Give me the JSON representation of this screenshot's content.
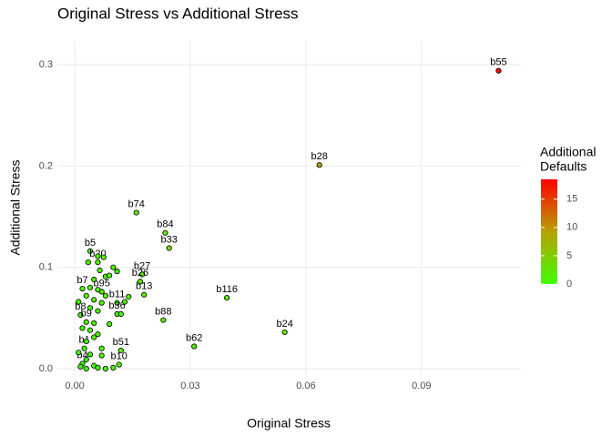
{
  "chart_data": {
    "type": "scatter",
    "title": "Original Stress vs Additional Stress",
    "xlabel": "Original Stress",
    "ylabel": "Additional Stress",
    "xlim": [
      -0.0045,
      0.1158
    ],
    "ylim": [
      -0.0063,
      0.3234
    ],
    "xticks": [
      {
        "value": 0,
        "label": "0.00"
      },
      0.03,
      0.06,
      0.09
    ],
    "yticks": [
      {
        "value": 0,
        "label": "0.0"
      },
      0.1,
      0.2,
      0.3
    ],
    "grid": true,
    "legend_title": [
      "Additional",
      "Defaults"
    ],
    "colorbar": {
      "lim": [
        0,
        18.5
      ],
      "ticks": [
        0,
        5,
        10,
        15
      ],
      "colors": [
        "#40ff00",
        "#b8a000",
        "#ff0000"
      ]
    },
    "x": [
      0.11,
      0.0635,
      0.016,
      0.0235,
      0.0245,
      0.004,
      0.006,
      0.0175,
      0.017,
      0.0395,
      0.018,
      0.007,
      0.002,
      0.011,
      0.023,
      0.011,
      0.0015,
      0.003,
      0.0545,
      0.031,
      0.012,
      0.0025,
      0.0115,
      0.002,
      0.0035,
      0.006,
      0.0075,
      0.0065,
      0.008,
      0.01,
      0.011,
      0.009,
      0.005,
      0.004,
      0.006,
      0.008,
      0.003,
      0.005,
      0.007,
      0.013,
      0.014,
      0.004,
      0.006,
      0.009,
      0.012,
      0.002,
      0.004,
      0.006,
      0.005,
      0.003,
      0.007,
      0.004,
      0.001,
      0.003,
      0.005,
      0.006,
      0.008,
      0.01,
      0.003,
      0.0015,
      0.007,
      0.005,
      0.001
    ],
    "values": [
      0.294,
      0.201,
      0.154,
      0.134,
      0.119,
      0.116,
      0.105,
      0.093,
      0.086,
      0.07,
      0.073,
      0.076,
      0.079,
      0.065,
      0.048,
      0.054,
      0.053,
      0.046,
      0.036,
      0.022,
      0.018,
      0.02,
      0.004,
      0.005,
      0.105,
      0.111,
      0.11,
      0.097,
      0.091,
      0.1,
      0.096,
      0.092,
      0.088,
      0.08,
      0.078,
      0.072,
      0.072,
      0.068,
      0.065,
      0.066,
      0.071,
      0.06,
      0.057,
      0.044,
      0.054,
      0.04,
      0.038,
      0.034,
      0.031,
      0.027,
      0.02,
      0.014,
      0.016,
      0.009,
      0.003,
      0.001,
      0.0,
      0.001,
      0.0,
      0.002,
      0.013,
      0.045,
      0.066
    ],
    "color_values": [
      18,
      9,
      3,
      3,
      3,
      1,
      1,
      2,
      2,
      2,
      2,
      1,
      1,
      1,
      2,
      1,
      1,
      1,
      2,
      2,
      1,
      1,
      1,
      0,
      1,
      1,
      1,
      1,
      1,
      1,
      1,
      1,
      1,
      1,
      1,
      1,
      1,
      1,
      1,
      1,
      1,
      0,
      1,
      1,
      1,
      0,
      1,
      1,
      1,
      0,
      1,
      0,
      0,
      0,
      0,
      0,
      1,
      1,
      0,
      0,
      1,
      1,
      0
    ],
    "point_labels": [
      "b55",
      "b28",
      "b74",
      "b84",
      "b33",
      "b5",
      "b20",
      "b27",
      "b26",
      "b116",
      "b13",
      "b95",
      "b7",
      "b11",
      "b88",
      "b36",
      "b8",
      "b9",
      "b24",
      "b62",
      "b51",
      "b1",
      "b10",
      "b4",
      null,
      null,
      null,
      null,
      null,
      null,
      null,
      null,
      null,
      null,
      null,
      null,
      null,
      null,
      null,
      null,
      null,
      null,
      null,
      null,
      null,
      null,
      null,
      null,
      null,
      null,
      null,
      null,
      null,
      null,
      null,
      null,
      null,
      null,
      null,
      null,
      null,
      null,
      null
    ]
  }
}
